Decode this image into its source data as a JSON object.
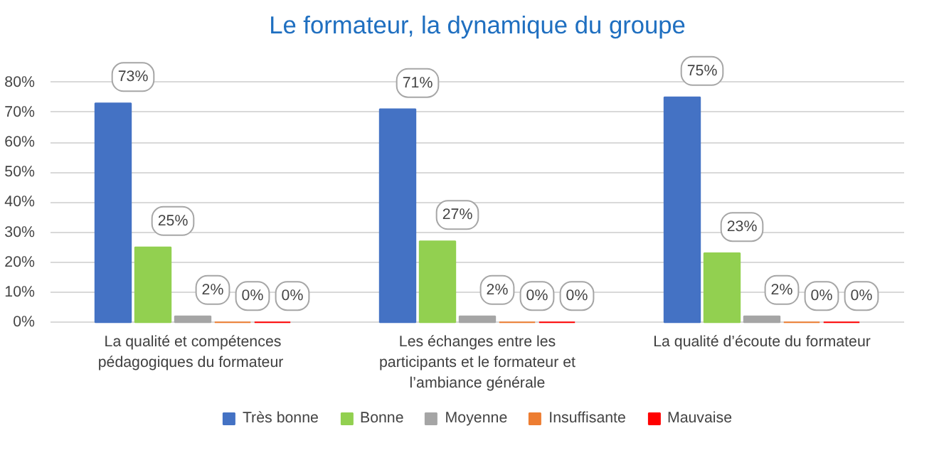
{
  "chart_data": {
    "type": "bar",
    "title": "Le formateur, la dynamique du groupe",
    "categories": [
      "La qualité et compétences pédagogiques  du formateur",
      "Les échanges entre les participants et le formateur et l’ambiance générale",
      "La qualité d’écoute du formateur"
    ],
    "series": [
      {
        "name": "Très bonne",
        "color": "#4472c4",
        "values": [
          73,
          71,
          75
        ]
      },
      {
        "name": "Bonne",
        "color": "#92d050",
        "values": [
          25,
          27,
          23
        ]
      },
      {
        "name": "Moyenne",
        "color": "#a5a5a5",
        "values": [
          2,
          2,
          2
        ]
      },
      {
        "name": "Insuffisante",
        "color": "#ed7d31",
        "values": [
          0,
          0,
          0
        ]
      },
      {
        "name": "Mauvaise",
        "color": "#ff0000",
        "values": [
          0,
          0,
          0
        ]
      }
    ],
    "value_labels": [
      [
        "73%",
        "71%",
        "75%"
      ],
      [
        "25%",
        "27%",
        "23%"
      ],
      [
        "2%",
        "2%",
        "2%"
      ],
      [
        "0%",
        "0%",
        "0%"
      ],
      [
        "0%",
        "0%",
        "0%"
      ]
    ],
    "ylim": [
      0,
      80
    ],
    "yticks": [
      {
        "value": 0,
        "label": "0%"
      },
      {
        "value": 10,
        "label": "10%"
      },
      {
        "value": 20,
        "label": "20%"
      },
      {
        "value": 30,
        "label": "30%"
      },
      {
        "value": 40,
        "label": "40%"
      },
      {
        "value": 50,
        "label": "50%"
      },
      {
        "value": 60,
        "label": "60%"
      },
      {
        "value": 70,
        "label": "70%"
      },
      {
        "value": 80,
        "label": "80%"
      }
    ],
    "grid": "y",
    "legend": "bottom"
  }
}
